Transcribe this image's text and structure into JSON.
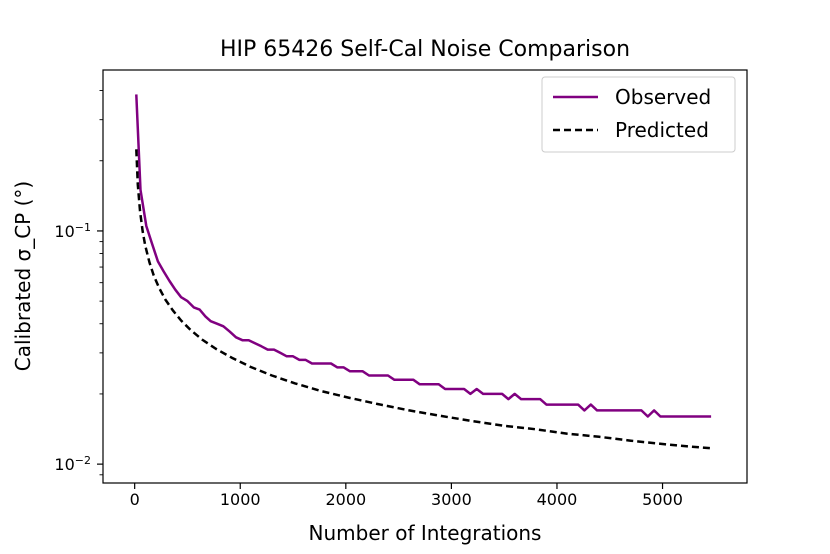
{
  "chart_data": {
    "type": "line",
    "title": "HIP 65426 Self-Cal Noise Comparison",
    "xlabel": "Number of Integrations",
    "ylabel": "Calibrated σ_CP (°)",
    "xlim": [
      -300,
      5800
    ],
    "ylim": [
      0.0083,
      0.49
    ],
    "yscale": "log",
    "xticks": [
      0,
      1000,
      2000,
      3000,
      4000,
      5000
    ],
    "xtick_labels": [
      "0",
      "1000",
      "2000",
      "3000",
      "4000",
      "5000"
    ],
    "yticks_major": [
      0.01,
      0.1
    ],
    "grid": false,
    "legend_position": "top-right",
    "series": [
      {
        "name": "Observed",
        "color": "#800080",
        "linestyle": "solid",
        "x": [
          15,
          55,
          110,
          165,
          220,
          275,
          330,
          385,
          440,
          500,
          560,
          615,
          670,
          720,
          780,
          840,
          900,
          960,
          1020,
          1080,
          1140,
          1200,
          1260,
          1320,
          1380,
          1440,
          1500,
          1560,
          1620,
          1680,
          1740,
          1800,
          1860,
          1920,
          1980,
          2040,
          2100,
          2160,
          2220,
          2280,
          2340,
          2400,
          2460,
          2520,
          2580,
          2640,
          2700,
          2760,
          2820,
          2880,
          2940,
          3000,
          3060,
          3120,
          3180,
          3240,
          3300,
          3360,
          3420,
          3480,
          3540,
          3600,
          3660,
          3720,
          3780,
          3840,
          3900,
          3960,
          4020,
          4080,
          4140,
          4200,
          4260,
          4320,
          4380,
          4440,
          4500,
          4560,
          4620,
          4680,
          4740,
          4800,
          4860,
          4920,
          4980,
          5040,
          5100,
          5160,
          5220,
          5280,
          5340,
          5400,
          5460
        ],
        "values": [
          0.385,
          0.15,
          0.105,
          0.088,
          0.074,
          0.067,
          0.061,
          0.056,
          0.052,
          0.05,
          0.047,
          0.046,
          0.043,
          0.041,
          0.04,
          0.039,
          0.037,
          0.035,
          0.034,
          0.034,
          0.033,
          0.032,
          0.031,
          0.031,
          0.03,
          0.029,
          0.029,
          0.028,
          0.028,
          0.027,
          0.027,
          0.027,
          0.027,
          0.026,
          0.026,
          0.025,
          0.025,
          0.025,
          0.024,
          0.024,
          0.024,
          0.024,
          0.023,
          0.023,
          0.023,
          0.023,
          0.022,
          0.022,
          0.022,
          0.022,
          0.021,
          0.021,
          0.021,
          0.021,
          0.02,
          0.021,
          0.02,
          0.02,
          0.02,
          0.02,
          0.019,
          0.02,
          0.019,
          0.019,
          0.019,
          0.019,
          0.018,
          0.018,
          0.018,
          0.018,
          0.018,
          0.018,
          0.017,
          0.018,
          0.017,
          0.017,
          0.017,
          0.017,
          0.017,
          0.017,
          0.017,
          0.017,
          0.016,
          0.017,
          0.016,
          0.016,
          0.016,
          0.016,
          0.016,
          0.016,
          0.016,
          0.016,
          0.016
        ]
      },
      {
        "name": "Predicted",
        "color": "#000000",
        "linestyle": "dashed",
        "x": [
          15,
          30,
          50,
          75,
          100,
          140,
          180,
          230,
          290,
          360,
          440,
          530,
          640,
          770,
          920,
          1100,
          1300,
          1520,
          1760,
          2020,
          2300,
          2600,
          2900,
          3200,
          3500,
          3800,
          4100,
          4400,
          4700,
          5000,
          5250,
          5460
        ],
        "values": [
          0.224,
          0.158,
          0.122,
          0.1,
          0.0866,
          0.0732,
          0.0645,
          0.0571,
          0.0508,
          0.0457,
          0.0413,
          0.0376,
          0.0342,
          0.0312,
          0.0286,
          0.0261,
          0.024,
          0.0222,
          0.0206,
          0.0193,
          0.0181,
          0.017,
          0.0161,
          0.0153,
          0.0146,
          0.0141,
          0.0135,
          0.0131,
          0.0126,
          0.0122,
          0.0119,
          0.0117
        ]
      }
    ]
  }
}
